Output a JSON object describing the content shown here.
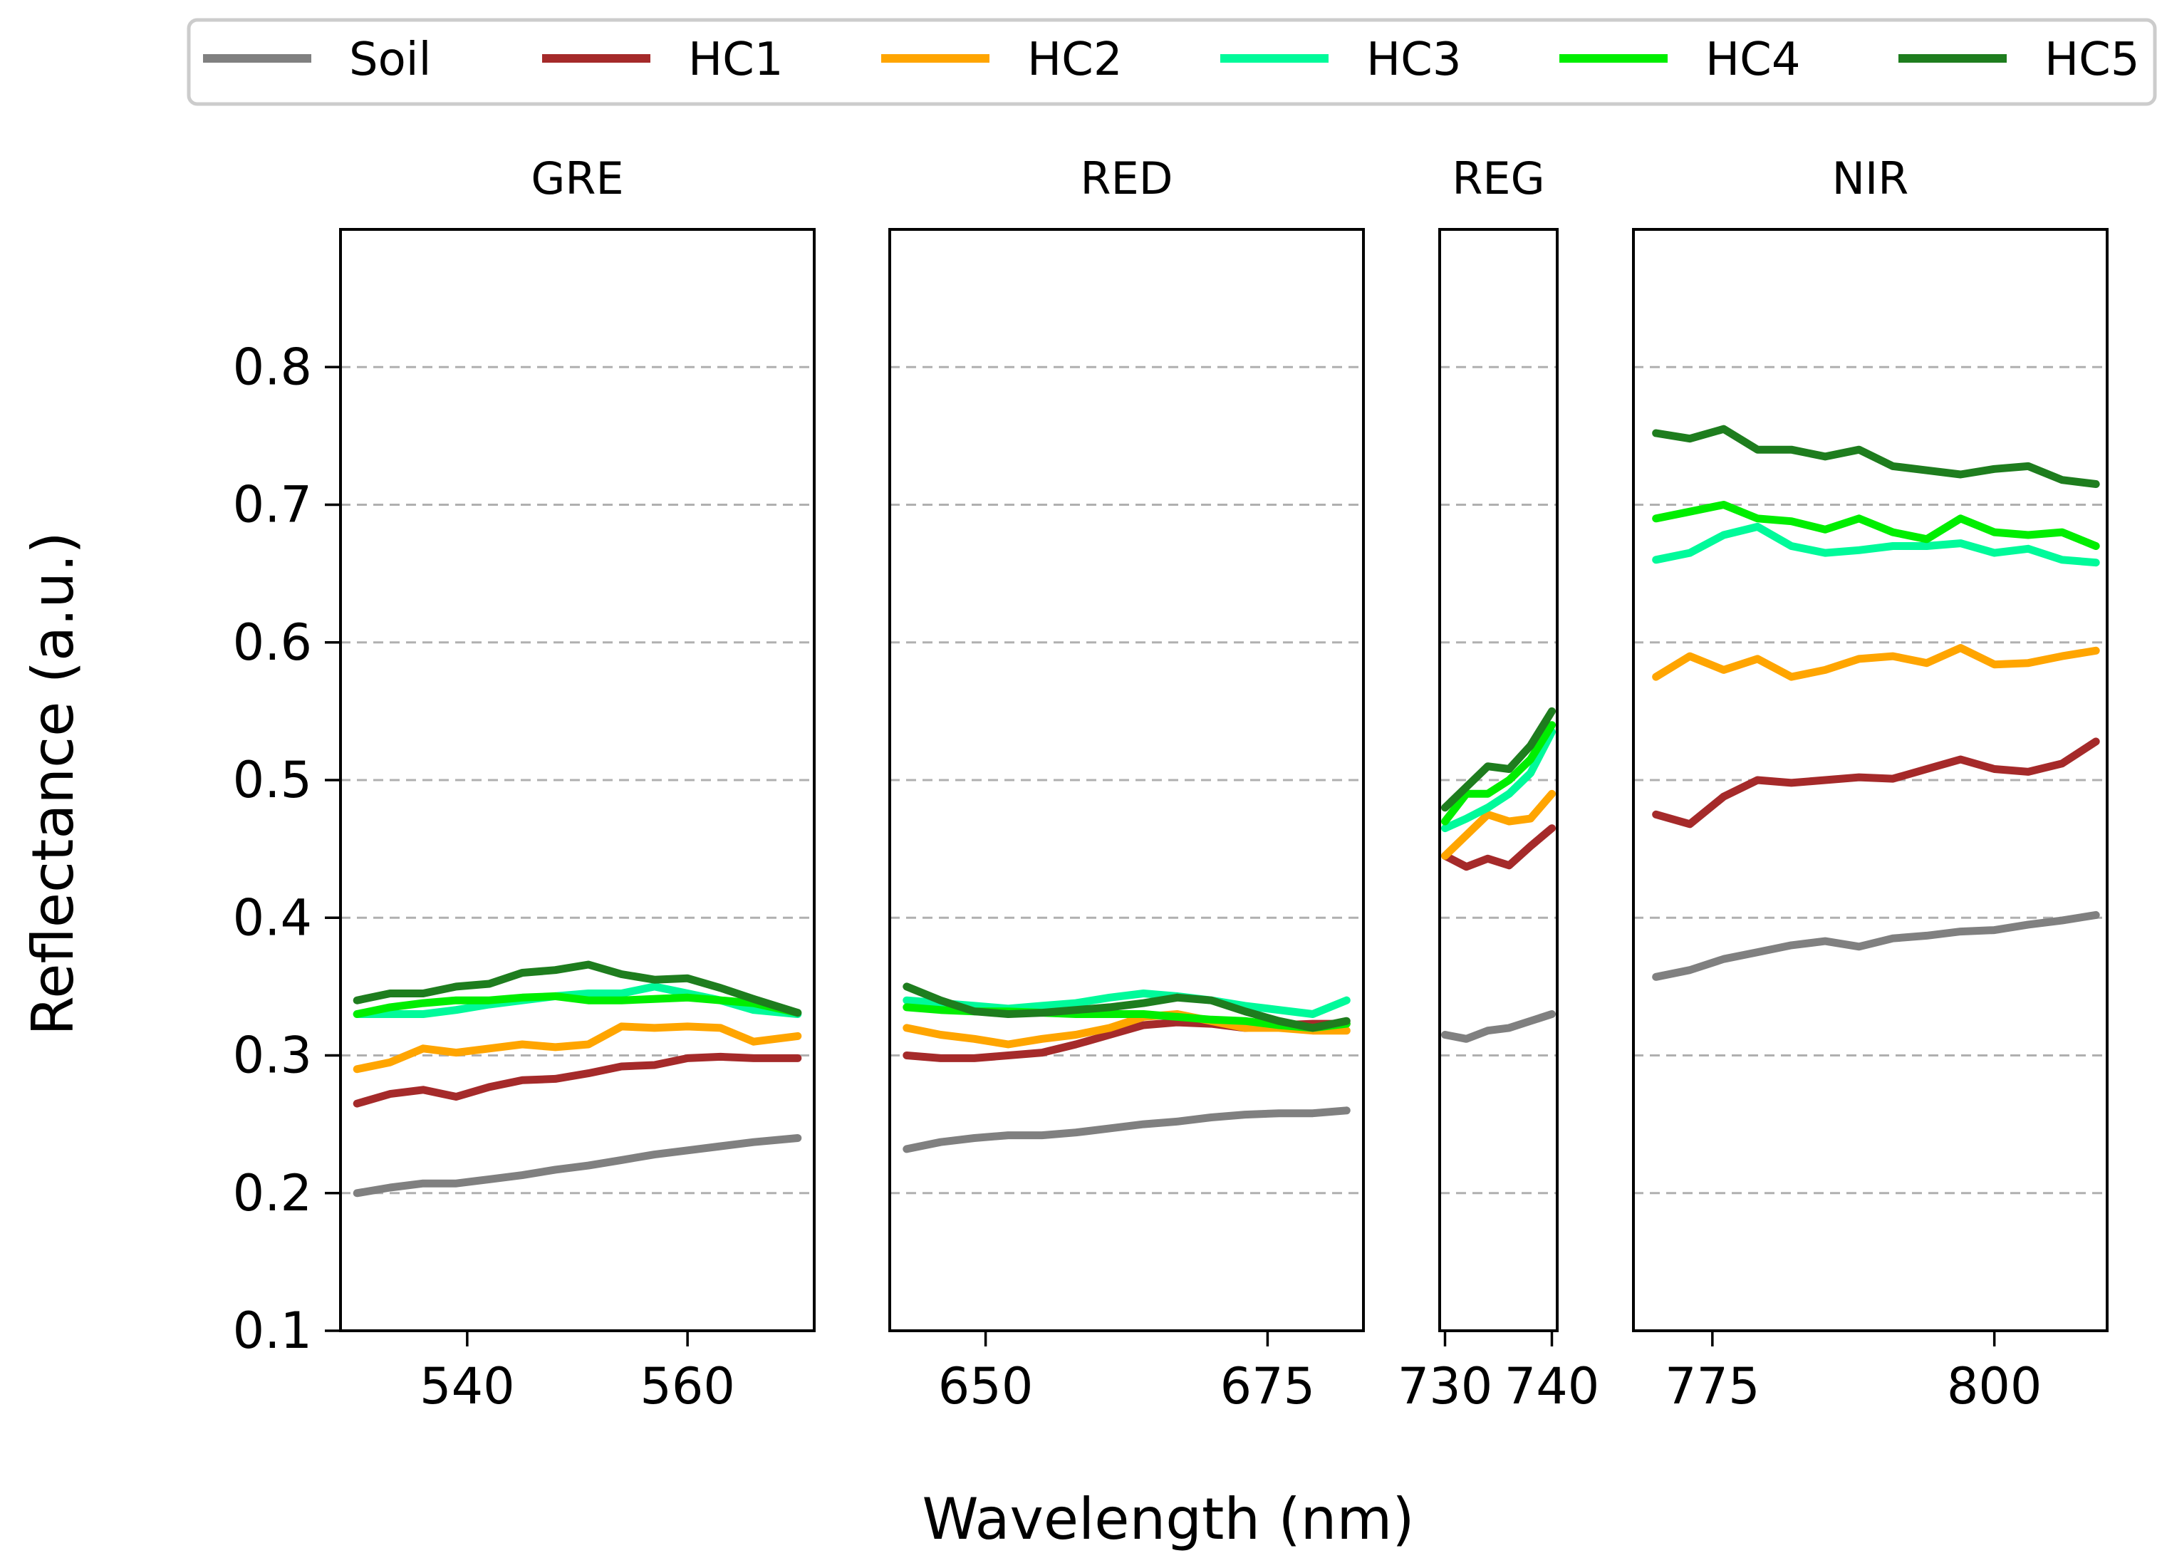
{
  "chart_data": {
    "type": "line",
    "xlabel": "Wavelength (nm)",
    "ylabel": "Reflectance (a.u.)",
    "ylim": [
      0.1,
      0.9
    ],
    "yticks": [
      0.1,
      0.2,
      0.3,
      0.4,
      0.5,
      0.6,
      0.7,
      0.8
    ],
    "ytick_labels": [
      "0.1",
      "0.2",
      "0.3",
      "0.4",
      "0.5",
      "0.6",
      "0.7",
      "0.8"
    ],
    "grid": "horizontal dashed",
    "legend": {
      "position": "top",
      "entries": [
        {
          "name": "Soil",
          "color": "#808080"
        },
        {
          "name": "HC1",
          "color": "#a52a2a"
        },
        {
          "name": "HC2",
          "color": "#ffa500"
        },
        {
          "name": "HC3",
          "color": "#00fa9a"
        },
        {
          "name": "HC4",
          "color": "#00ee00"
        },
        {
          "name": "HC5",
          "color": "#1e7d1e"
        }
      ]
    },
    "panels": [
      {
        "title": "GRE",
        "xlim": [
          528.5,
          571.5
        ],
        "xticks": [
          540,
          560
        ],
        "xtick_labels": [
          "540",
          "560"
        ],
        "x": [
          530,
          533,
          536,
          539,
          542,
          545,
          548,
          551,
          554,
          557,
          560,
          563,
          566,
          570
        ],
        "series": [
          {
            "name": "Soil",
            "values": [
              0.2,
              0.204,
              0.207,
              0.207,
              0.21,
              0.213,
              0.217,
              0.22,
              0.224,
              0.228,
              0.231,
              0.234,
              0.237,
              0.24
            ]
          },
          {
            "name": "HC1",
            "values": [
              0.265,
              0.272,
              0.275,
              0.27,
              0.277,
              0.282,
              0.283,
              0.287,
              0.292,
              0.293,
              0.298,
              0.299,
              0.298,
              0.298
            ]
          },
          {
            "name": "HC2",
            "values": [
              0.29,
              0.295,
              0.305,
              0.302,
              0.305,
              0.308,
              0.306,
              0.308,
              0.321,
              0.32,
              0.321,
              0.32,
              0.31,
              0.314
            ]
          },
          {
            "name": "HC3",
            "values": [
              0.33,
              0.33,
              0.33,
              0.333,
              0.337,
              0.34,
              0.343,
              0.345,
              0.345,
              0.35,
              0.345,
              0.34,
              0.333,
              0.33
            ]
          },
          {
            "name": "HC4",
            "values": [
              0.33,
              0.335,
              0.338,
              0.34,
              0.34,
              0.342,
              0.343,
              0.34,
              0.34,
              0.341,
              0.342,
              0.34,
              0.338,
              0.331
            ]
          },
          {
            "name": "HC5",
            "values": [
              0.34,
              0.345,
              0.345,
              0.35,
              0.352,
              0.36,
              0.362,
              0.366,
              0.359,
              0.355,
              0.356,
              0.349,
              0.341,
              0.331
            ]
          }
        ]
      },
      {
        "title": "RED",
        "xlim": [
          641.5,
          683.5
        ],
        "xticks": [
          650,
          675
        ],
        "xtick_labels": [
          "650",
          "675"
        ],
        "x": [
          643,
          646,
          649,
          652,
          655,
          658,
          661,
          664,
          667,
          670,
          673,
          676,
          679,
          682
        ],
        "series": [
          {
            "name": "Soil",
            "values": [
              0.232,
              0.237,
              0.24,
              0.242,
              0.242,
              0.244,
              0.247,
              0.25,
              0.252,
              0.255,
              0.257,
              0.258,
              0.258,
              0.26
            ]
          },
          {
            "name": "HC1",
            "values": [
              0.3,
              0.298,
              0.298,
              0.3,
              0.302,
              0.308,
              0.315,
              0.322,
              0.324,
              0.323,
              0.32,
              0.322,
              0.323,
              0.323
            ]
          },
          {
            "name": "HC2",
            "values": [
              0.32,
              0.315,
              0.312,
              0.308,
              0.312,
              0.315,
              0.32,
              0.328,
              0.33,
              0.325,
              0.32,
              0.32,
              0.318,
              0.318
            ]
          },
          {
            "name": "HC3",
            "values": [
              0.34,
              0.338,
              0.336,
              0.334,
              0.336,
              0.338,
              0.342,
              0.345,
              0.343,
              0.34,
              0.336,
              0.333,
              0.33,
              0.34
            ]
          },
          {
            "name": "HC4",
            "values": [
              0.335,
              0.333,
              0.332,
              0.332,
              0.331,
              0.33,
              0.33,
              0.33,
              0.328,
              0.326,
              0.325,
              0.322,
              0.32,
              0.323
            ]
          },
          {
            "name": "HC5",
            "values": [
              0.35,
              0.34,
              0.332,
              0.33,
              0.331,
              0.333,
              0.335,
              0.338,
              0.342,
              0.34,
              0.332,
              0.325,
              0.32,
              0.325
            ]
          }
        ]
      },
      {
        "title": "REG",
        "xlim": [
          729.5,
          740.5
        ],
        "xticks": [
          730,
          740
        ],
        "xtick_labels": [
          "730",
          "740"
        ],
        "x": [
          730,
          732,
          734,
          736,
          738,
          740
        ],
        "series": [
          {
            "name": "Soil",
            "values": [
              0.315,
              0.312,
              0.318,
              0.32,
              0.325,
              0.33
            ]
          },
          {
            "name": "HC1",
            "values": [
              0.445,
              0.437,
              0.443,
              0.438,
              0.452,
              0.465
            ]
          },
          {
            "name": "HC2",
            "values": [
              0.445,
              0.46,
              0.475,
              0.47,
              0.472,
              0.49
            ]
          },
          {
            "name": "HC3",
            "values": [
              0.465,
              0.472,
              0.48,
              0.49,
              0.505,
              0.535
            ]
          },
          {
            "name": "HC4",
            "values": [
              0.47,
              0.49,
              0.49,
              0.5,
              0.515,
              0.54
            ]
          },
          {
            "name": "HC5",
            "values": [
              0.48,
              0.495,
              0.51,
              0.508,
              0.525,
              0.55
            ]
          }
        ]
      },
      {
        "title": "NIR",
        "xlim": [
          768,
          810
        ],
        "xticks": [
          775,
          800
        ],
        "xtick_labels": [
          "775",
          "800"
        ],
        "x": [
          770,
          773,
          776,
          779,
          782,
          785,
          788,
          791,
          794,
          797,
          800,
          803,
          806,
          809
        ],
        "series": [
          {
            "name": "Soil",
            "values": [
              0.357,
              0.362,
              0.37,
              0.375,
              0.38,
              0.383,
              0.379,
              0.385,
              0.387,
              0.39,
              0.391,
              0.395,
              0.398,
              0.402
            ]
          },
          {
            "name": "HC1",
            "values": [
              0.475,
              0.468,
              0.488,
              0.5,
              0.498,
              0.5,
              0.502,
              0.501,
              0.508,
              0.515,
              0.508,
              0.506,
              0.512,
              0.528
            ]
          },
          {
            "name": "HC2",
            "values": [
              0.575,
              0.59,
              0.58,
              0.588,
              0.575,
              0.58,
              0.588,
              0.59,
              0.585,
              0.596,
              0.584,
              0.585,
              0.59,
              0.594
            ]
          },
          {
            "name": "HC3",
            "values": [
              0.66,
              0.665,
              0.678,
              0.684,
              0.67,
              0.665,
              0.667,
              0.67,
              0.67,
              0.672,
              0.665,
              0.668,
              0.66,
              0.658
            ]
          },
          {
            "name": "HC4",
            "values": [
              0.69,
              0.695,
              0.7,
              0.69,
              0.688,
              0.682,
              0.69,
              0.68,
              0.675,
              0.69,
              0.68,
              0.678,
              0.68,
              0.67
            ]
          },
          {
            "name": "HC5",
            "values": [
              0.752,
              0.748,
              0.755,
              0.74,
              0.74,
              0.735,
              0.74,
              0.728,
              0.725,
              0.722,
              0.726,
              0.728,
              0.718,
              0.715
            ]
          }
        ]
      }
    ]
  }
}
